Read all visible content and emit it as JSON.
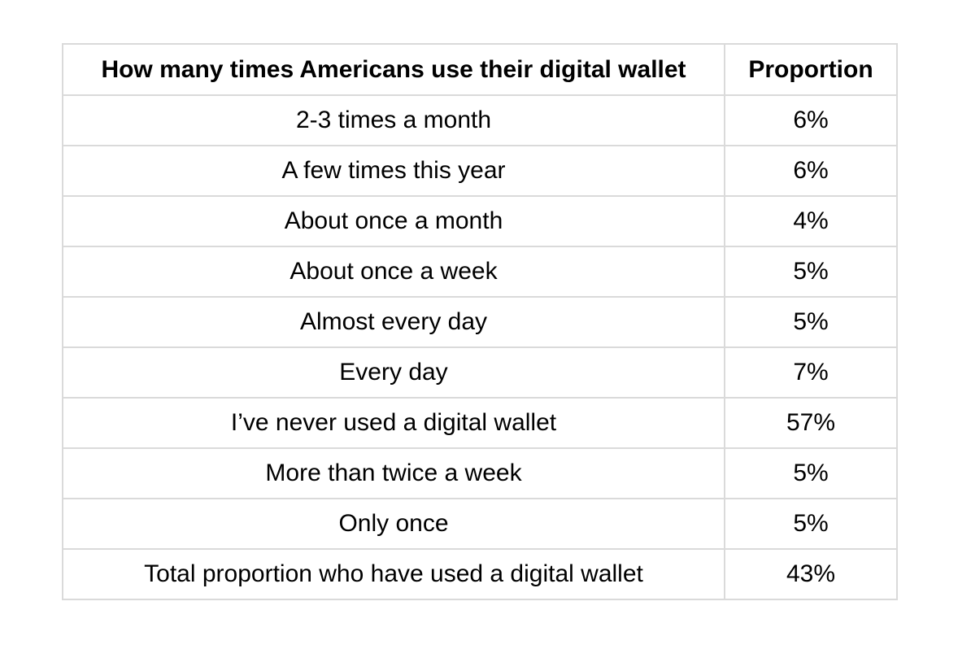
{
  "table": {
    "headers": [
      "How many times Americans use their digital wallet",
      "Proportion"
    ],
    "rows": [
      [
        "2-3 times a month",
        "6%"
      ],
      [
        "A few times this year",
        "6%"
      ],
      [
        "About once a month",
        "4%"
      ],
      [
        "About once a week",
        "5%"
      ],
      [
        "Almost every day",
        "5%"
      ],
      [
        "Every day",
        "7%"
      ],
      [
        "I’ve never used a digital wallet",
        "57%"
      ],
      [
        "More than twice a week",
        "5%"
      ],
      [
        "Only once",
        "5%"
      ],
      [
        "Total proportion who have used a digital wallet",
        "43%"
      ]
    ]
  }
}
